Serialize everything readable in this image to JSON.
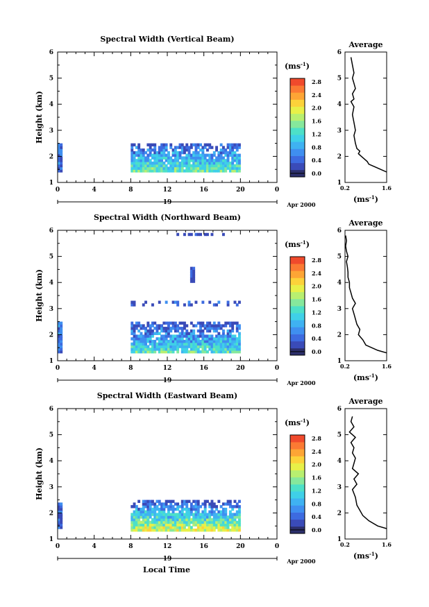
{
  "colors": {
    "scale": [
      "#2c2f6b",
      "#3a4bb8",
      "#3d6be0",
      "#3f8ff0",
      "#3fb2f2",
      "#3fd0e8",
      "#4de0c8",
      "#86e89c",
      "#b8ef70",
      "#e8f048",
      "#fcd23a",
      "#fda535",
      "#fb7a33",
      "#f04a2c"
    ]
  },
  "shared": {
    "xlabel": "Local Time",
    "date_label": "Apr 2000",
    "day_label": "19",
    "colorbar_unit": "(ms",
    "colorbar_unit_sup": "-1",
    "colorbar_unit_close": ")",
    "avg_title": "Average",
    "avg_xlabel": "(ms",
    "avg_xlabel_sup": "-1",
    "avg_xlabel_close": ")"
  },
  "chart_data": [
    {
      "type": "heatmap",
      "title": "Spectral Width (Vertical Beam)",
      "ylabel": "Height (km)",
      "xlim": [
        0,
        24
      ],
      "ylim": [
        1,
        6
      ],
      "xticks": [
        "0",
        "4",
        "8",
        "12",
        "16",
        "20",
        "0"
      ],
      "yticks": [
        "1",
        "2",
        "3",
        "4",
        "5",
        "6"
      ],
      "colorbar_ticks": [
        "0.0",
        "0.4",
        "0.8",
        "1.2",
        "1.6",
        "2.0",
        "2.4",
        "2.8"
      ],
      "colorbar_range": [
        0,
        2.8
      ],
      "data_regions": [
        {
          "x": [
            0,
            0.5
          ],
          "y": [
            1.4,
            2.5
          ],
          "mean": 0.5
        },
        {
          "x": [
            8,
            20
          ],
          "y": [
            1.4,
            2.5
          ],
          "mean": 0.9
        }
      ],
      "average": {
        "xlabel_ticks": [
          "0.2",
          "1.6"
        ],
        "xlim": [
          0.2,
          1.6
        ],
        "yticks": [
          "1",
          "2",
          "3",
          "4",
          "5",
          "6"
        ],
        "height": [
          1.4,
          1.5,
          1.6,
          1.7,
          1.8,
          1.9,
          2.0,
          2.1,
          2.2,
          2.3,
          2.5,
          2.8,
          3.0,
          3.3,
          3.6,
          3.9,
          4.1,
          4.2,
          4.4,
          4.6,
          4.8,
          5.0,
          5.2,
          5.5,
          5.8
        ],
        "width": [
          1.6,
          1.4,
          1.2,
          1.0,
          0.95,
          0.85,
          0.75,
          0.65,
          0.7,
          0.6,
          0.55,
          0.5,
          0.55,
          0.5,
          0.45,
          0.5,
          0.4,
          0.5,
          0.45,
          0.55,
          0.5,
          0.45,
          0.5,
          0.45,
          0.4
        ]
      }
    },
    {
      "type": "heatmap",
      "title": "Spectral Width (Northward Beam)",
      "ylabel": "Height (km)",
      "xlim": [
        0,
        24
      ],
      "ylim": [
        1,
        6
      ],
      "xticks": [
        "0",
        "4",
        "8",
        "12",
        "16",
        "20",
        "0"
      ],
      "yticks": [
        "1",
        "2",
        "3",
        "4",
        "5",
        "6"
      ],
      "colorbar_ticks": [
        "0.0",
        "0.4",
        "0.8",
        "1.2",
        "1.6",
        "2.0",
        "2.4",
        "2.8"
      ],
      "colorbar_range": [
        0,
        2.8
      ],
      "data_regions": [
        {
          "x": [
            0,
            0.5
          ],
          "y": [
            1.3,
            2.5
          ],
          "mean": 0.6
        },
        {
          "x": [
            8,
            20
          ],
          "y": [
            1.3,
            2.5
          ],
          "mean": 0.8
        },
        {
          "x": [
            8,
            20
          ],
          "y": [
            3.1,
            3.3
          ],
          "mean": 0.3
        },
        {
          "x": [
            14.5,
            14.8
          ],
          "y": [
            4.0,
            4.6
          ],
          "mean": 0.2
        },
        {
          "x": [
            13,
            19
          ],
          "y": [
            5.8,
            5.9
          ],
          "mean": 0.2
        }
      ],
      "average": {
        "xlabel_ticks": [
          "0.2",
          "1.6"
        ],
        "xlim": [
          0.2,
          1.6
        ],
        "yticks": [
          "1",
          "2",
          "3",
          "4",
          "5",
          "6"
        ],
        "height": [
          1.3,
          1.4,
          1.6,
          1.8,
          2.0,
          2.2,
          2.4,
          2.6,
          2.8,
          3.0,
          3.2,
          3.4,
          3.6,
          3.8,
          4.0,
          4.2,
          4.4,
          4.6,
          4.8,
          5.0,
          5.2,
          5.4,
          5.6,
          5.8
        ],
        "width": [
          1.6,
          1.3,
          0.9,
          0.8,
          0.65,
          0.7,
          0.6,
          0.55,
          0.5,
          0.45,
          0.55,
          0.45,
          0.4,
          0.35,
          0.35,
          0.3,
          0.3,
          0.28,
          0.25,
          0.3,
          0.25,
          0.22,
          0.25,
          0.22
        ]
      }
    },
    {
      "type": "heatmap",
      "title": "Spectral Width (Eastward Beam)",
      "ylabel": "Height (km)",
      "xlim": [
        0,
        24
      ],
      "ylim": [
        1,
        6
      ],
      "xticks": [
        "0",
        "4",
        "8",
        "12",
        "16",
        "20",
        "0"
      ],
      "yticks": [
        "1",
        "2",
        "3",
        "4",
        "5",
        "6"
      ],
      "colorbar_ticks": [
        "0.0",
        "0.4",
        "0.8",
        "1.2",
        "1.6",
        "2.0",
        "2.4",
        "2.8"
      ],
      "colorbar_range": [
        0,
        2.8
      ],
      "data_regions": [
        {
          "x": [
            0,
            0.5
          ],
          "y": [
            1.4,
            2.4
          ],
          "mean": 0.5
        },
        {
          "x": [
            8,
            20
          ],
          "y": [
            1.3,
            2.5
          ],
          "mean": 1.1
        }
      ],
      "average": {
        "xlabel_ticks": [
          "0.2",
          "1.6"
        ],
        "xlim": [
          0.2,
          1.6
        ],
        "yticks": [
          "1",
          "2",
          "3",
          "4",
          "5",
          "6"
        ],
        "height": [
          1.4,
          1.5,
          1.7,
          1.9,
          2.1,
          2.3,
          2.6,
          2.9,
          3.1,
          3.3,
          3.5,
          3.7,
          3.9,
          4.1,
          4.3,
          4.5,
          4.7,
          4.9,
          5.1,
          5.3,
          5.5,
          5.7
        ],
        "width": [
          1.6,
          1.3,
          1.0,
          0.8,
          0.7,
          0.6,
          0.55,
          0.45,
          0.6,
          0.5,
          0.65,
          0.45,
          0.5,
          0.55,
          0.45,
          0.5,
          0.4,
          0.55,
          0.35,
          0.5,
          0.4,
          0.45
        ]
      }
    }
  ]
}
